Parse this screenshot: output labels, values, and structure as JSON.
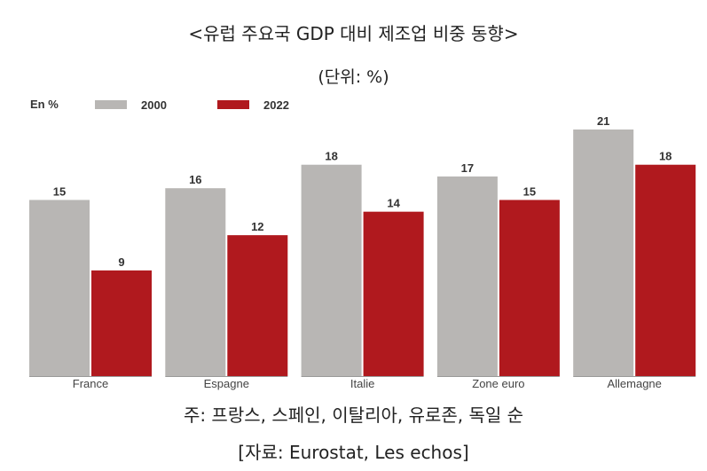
{
  "title": "<유럽 주요국 GDP 대비 제조업 비중 동향>",
  "unit": "(단위: %)",
  "note": "주: 프랑스, 스페인, 이탈리아, 유로존, 독일 순",
  "source": "[자료: Eurostat, Les echos]",
  "chart_data": {
    "type": "bar",
    "legend_prefix": "En %",
    "legend_position": "top-left",
    "categories": [
      "France",
      "Espagne",
      "Italie",
      "Zone euro",
      "Allemagne"
    ],
    "series": [
      {
        "name": "2000",
        "color": "#b8b6b4",
        "values": [
          15,
          16,
          18,
          17,
          21
        ]
      },
      {
        "name": "2022",
        "color": "#b0191e",
        "values": [
          9,
          12,
          14,
          15,
          18
        ]
      }
    ],
    "ylim": [
      0,
      21
    ],
    "grid": false
  }
}
